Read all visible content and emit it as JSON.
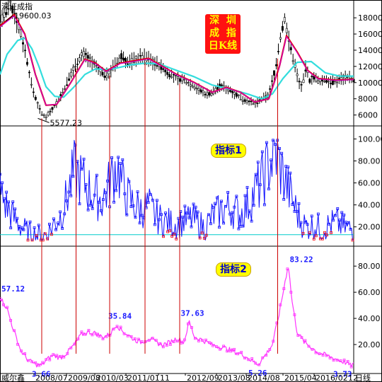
{
  "chart_data": [
    {
      "type": "candlestick",
      "panel": "price",
      "name": "深证成指",
      "title_lines": [
        "深  圳",
        "成  指",
        "日K线"
      ],
      "ylim": [
        5000,
        19500
      ],
      "yticks": [
        6000,
        8000,
        10000,
        12000,
        14000,
        16000,
        18000
      ],
      "annotations": [
        {
          "text": "19600.03",
          "x": 0.012,
          "y": 19600
        },
        {
          "text": "5577.23",
          "x": 0.115,
          "y": 5577
        }
      ],
      "price_path": [
        [
          0,
          17600
        ],
        [
          0.015,
          18500
        ],
        [
          0.03,
          19500
        ],
        [
          0.045,
          18000
        ],
        [
          0.06,
          16000
        ],
        [
          0.075,
          13000
        ],
        [
          0.09,
          9500
        ],
        [
          0.105,
          7500
        ],
        [
          0.118,
          6100
        ],
        [
          0.13,
          5800
        ],
        [
          0.145,
          6600
        ],
        [
          0.16,
          7500
        ],
        [
          0.18,
          9000
        ],
        [
          0.2,
          11000
        ],
        [
          0.22,
          12700
        ],
        [
          0.235,
          13600
        ],
        [
          0.25,
          13000
        ],
        [
          0.265,
          12300
        ],
        [
          0.28,
          11500
        ],
        [
          0.3,
          10800
        ],
        [
          0.315,
          11700
        ],
        [
          0.33,
          12300
        ],
        [
          0.345,
          13400
        ],
        [
          0.36,
          12400
        ],
        [
          0.38,
          12800
        ],
        [
          0.4,
          13200
        ],
        [
          0.42,
          12900
        ],
        [
          0.44,
          12400
        ],
        [
          0.46,
          11800
        ],
        [
          0.48,
          11000
        ],
        [
          0.5,
          10500
        ],
        [
          0.52,
          10300
        ],
        [
          0.54,
          9800
        ],
        [
          0.56,
          9200
        ],
        [
          0.58,
          8600
        ],
        [
          0.6,
          8700
        ],
        [
          0.62,
          9600
        ],
        [
          0.64,
          9300
        ],
        [
          0.66,
          8800
        ],
        [
          0.68,
          8100
        ],
        [
          0.7,
          7700
        ],
        [
          0.72,
          7400
        ],
        [
          0.74,
          7900
        ],
        [
          0.76,
          8500
        ],
        [
          0.78,
          12000
        ],
        [
          0.79,
          15000
        ],
        [
          0.805,
          18000
        ],
        [
          0.815,
          15500
        ],
        [
          0.825,
          13500
        ],
        [
          0.835,
          12000
        ],
        [
          0.845,
          10000
        ],
        [
          0.855,
          9500
        ],
        [
          0.865,
          12000
        ],
        [
          0.875,
          10200
        ],
        [
          0.885,
          10800
        ],
        [
          0.9,
          10100
        ],
        [
          0.92,
          10400
        ],
        [
          0.94,
          10000
        ],
        [
          0.96,
          10400
        ],
        [
          0.98,
          10800
        ],
        [
          1.0,
          10300
        ]
      ],
      "ma_red": [
        [
          0,
          17000
        ],
        [
          0.04,
          18400
        ],
        [
          0.07,
          16000
        ],
        [
          0.1,
          11000
        ],
        [
          0.13,
          7200
        ],
        [
          0.16,
          7300
        ],
        [
          0.2,
          10000
        ],
        [
          0.24,
          12900
        ],
        [
          0.27,
          12400
        ],
        [
          0.3,
          11400
        ],
        [
          0.34,
          12400
        ],
        [
          0.38,
          12700
        ],
        [
          0.42,
          13000
        ],
        [
          0.46,
          12000
        ],
        [
          0.5,
          11000
        ],
        [
          0.55,
          10000
        ],
        [
          0.6,
          8800
        ],
        [
          0.64,
          9400
        ],
        [
          0.68,
          8800
        ],
        [
          0.72,
          7600
        ],
        [
          0.76,
          8000
        ],
        [
          0.79,
          12000
        ],
        [
          0.81,
          15800
        ],
        [
          0.84,
          13800
        ],
        [
          0.87,
          11500
        ],
        [
          0.9,
          10500
        ],
        [
          0.95,
          10300
        ],
        [
          1.0,
          10400
        ]
      ],
      "ma_cyan": [
        [
          0,
          11000
        ],
        [
          0.02,
          13500
        ],
        [
          0.05,
          15200
        ],
        [
          0.07,
          15500
        ],
        [
          0.09,
          14200
        ],
        [
          0.11,
          12000
        ],
        [
          0.13,
          9500
        ],
        [
          0.155,
          8300
        ],
        [
          0.18,
          8200
        ],
        [
          0.21,
          9500
        ],
        [
          0.24,
          11000
        ],
        [
          0.27,
          11700
        ],
        [
          0.3,
          11600
        ],
        [
          0.33,
          11800
        ],
        [
          0.37,
          12200
        ],
        [
          0.41,
          12400
        ],
        [
          0.45,
          12300
        ],
        [
          0.5,
          11500
        ],
        [
          0.55,
          10700
        ],
        [
          0.6,
          9700
        ],
        [
          0.65,
          9200
        ],
        [
          0.7,
          8600
        ],
        [
          0.74,
          8000
        ],
        [
          0.77,
          8600
        ],
        [
          0.8,
          10500
        ],
        [
          0.84,
          12500
        ],
        [
          0.88,
          12600
        ],
        [
          0.92,
          11200
        ],
        [
          0.96,
          10800
        ],
        [
          1.0,
          10800
        ]
      ]
    },
    {
      "type": "line",
      "panel": "indicator1",
      "name": "指标1",
      "ylim": [
        5,
        108
      ],
      "yticks": [
        20,
        40,
        60,
        80,
        100
      ],
      "threshold": 13,
      "values": [
        [
          0,
          52
        ],
        [
          0.02,
          38
        ],
        [
          0.04,
          28
        ],
        [
          0.06,
          20
        ],
        [
          0.08,
          15
        ],
        [
          0.1,
          13
        ],
        [
          0.12,
          12
        ],
        [
          0.135,
          14
        ],
        [
          0.15,
          22
        ],
        [
          0.17,
          30
        ],
        [
          0.19,
          48
        ],
        [
          0.21,
          72
        ],
        [
          0.23,
          64
        ],
        [
          0.25,
          55
        ],
        [
          0.27,
          48
        ],
        [
          0.29,
          45
        ],
        [
          0.31,
          60
        ],
        [
          0.33,
          78
        ],
        [
          0.345,
          60
        ],
        [
          0.36,
          48
        ],
        [
          0.38,
          40
        ],
        [
          0.4,
          36
        ],
        [
          0.42,
          40
        ],
        [
          0.44,
          30
        ],
        [
          0.46,
          26
        ],
        [
          0.48,
          24
        ],
        [
          0.5,
          22
        ],
        [
          0.52,
          25
        ],
        [
          0.54,
          28
        ],
        [
          0.56,
          24
        ],
        [
          0.58,
          19
        ],
        [
          0.6,
          30
        ],
        [
          0.62,
          34
        ],
        [
          0.64,
          38
        ],
        [
          0.66,
          36
        ],
        [
          0.68,
          32
        ],
        [
          0.7,
          40
        ],
        [
          0.72,
          52
        ],
        [
          0.74,
          62
        ],
        [
          0.76,
          78
        ],
        [
          0.78,
          88
        ],
        [
          0.8,
          68
        ],
        [
          0.815,
          55
        ],
        [
          0.83,
          42
        ],
        [
          0.85,
          25
        ],
        [
          0.87,
          20
        ],
        [
          0.89,
          22
        ],
        [
          0.91,
          18
        ],
        [
          0.93,
          22
        ],
        [
          0.95,
          25
        ],
        [
          0.97,
          20
        ],
        [
          1.0,
          18
        ]
      ]
    },
    {
      "type": "line",
      "panel": "indicator2",
      "name": "指标2",
      "ylim": [
        0,
        92
      ],
      "yticks": [
        20,
        40,
        60,
        80
      ],
      "labels": [
        {
          "text": "57.12",
          "x": 0.0
        },
        {
          "text": "3.66",
          "x": 0.118
        },
        {
          "text": "35.84",
          "x": 0.33
        },
        {
          "text": "37.63",
          "x": 0.535
        },
        {
          "text": "5.26",
          "x": 0.73
        },
        {
          "text": "83.22",
          "x": 0.815
        },
        {
          "text": "3.73",
          "x": 0.99
        }
      ],
      "values": [
        [
          0,
          57
        ],
        [
          0.02,
          48
        ],
        [
          0.04,
          30
        ],
        [
          0.06,
          15
        ],
        [
          0.08,
          8
        ],
        [
          0.1,
          5
        ],
        [
          0.118,
          4
        ],
        [
          0.13,
          8
        ],
        [
          0.15,
          12
        ],
        [
          0.17,
          10
        ],
        [
          0.19,
          14
        ],
        [
          0.21,
          20
        ],
        [
          0.23,
          28
        ],
        [
          0.25,
          30
        ],
        [
          0.27,
          29
        ],
        [
          0.29,
          26
        ],
        [
          0.31,
          28
        ],
        [
          0.33,
          36
        ],
        [
          0.34,
          32
        ],
        [
          0.36,
          28
        ],
        [
          0.38,
          24
        ],
        [
          0.4,
          22
        ],
        [
          0.42,
          25
        ],
        [
          0.44,
          22
        ],
        [
          0.46,
          20
        ],
        [
          0.48,
          22
        ],
        [
          0.5,
          25
        ],
        [
          0.52,
          22
        ],
        [
          0.535,
          38
        ],
        [
          0.55,
          26
        ],
        [
          0.57,
          24
        ],
        [
          0.6,
          20
        ],
        [
          0.63,
          18
        ],
        [
          0.66,
          15
        ],
        [
          0.69,
          12
        ],
        [
          0.71,
          8
        ],
        [
          0.73,
          5
        ],
        [
          0.75,
          12
        ],
        [
          0.77,
          20
        ],
        [
          0.79,
          45
        ],
        [
          0.8,
          60
        ],
        [
          0.81,
          75
        ],
        [
          0.815,
          83
        ],
        [
          0.825,
          55
        ],
        [
          0.84,
          30
        ],
        [
          0.86,
          22
        ],
        [
          0.88,
          18
        ],
        [
          0.9,
          14
        ],
        [
          0.92,
          12
        ],
        [
          0.94,
          10
        ],
        [
          0.96,
          8
        ],
        [
          0.98,
          6
        ],
        [
          0.99,
          4
        ],
        [
          1.0,
          5
        ]
      ]
    }
  ],
  "x_axis": {
    "left_label": "威尔鑫",
    "right_label": "日线",
    "dates": [
      "2008/07",
      "2009/08",
      "2010/03",
      "2011/01",
      "11",
      "2012/09",
      "2013/08",
      "2014/08",
      "2015/04",
      "2016/02",
      "12"
    ]
  },
  "vertical_markers": [
    0.118,
    0.215,
    0.31,
    0.41,
    0.508,
    0.785
  ],
  "colors": {
    "price_candle": "#000000",
    "ma_red": "#e00000",
    "ma_cyan": "#33dddd",
    "ma_magenta": "#cc00cc",
    "ind1_line": "#1010ff",
    "ind1_low": "#ff0000",
    "ind2_line": "#ff33ff",
    "marker_line": "#cc0000",
    "threshold": "#00cccc"
  }
}
